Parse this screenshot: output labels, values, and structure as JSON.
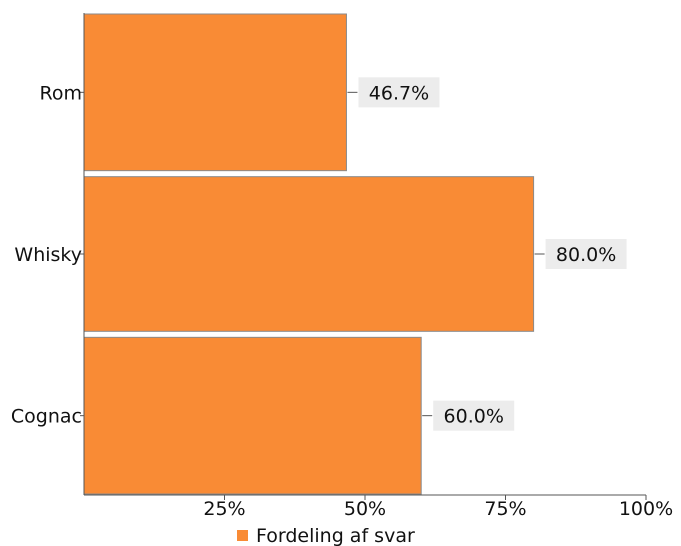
{
  "chart_data": {
    "type": "bar",
    "orientation": "horizontal",
    "categories": [
      "Rom",
      "Whisky",
      "Cognac"
    ],
    "series": [
      {
        "name": "Fordeling af svar",
        "values": [
          46.7,
          80.0,
          60.0
        ],
        "color": "#f98b35"
      }
    ],
    "data_labels": [
      "46.7%",
      "80.0%",
      "60.0%"
    ],
    "x_ticks": [
      25,
      50,
      75,
      100
    ],
    "x_tick_labels": [
      "25%",
      "50%",
      "75%",
      "100%"
    ],
    "xlim": [
      0,
      100
    ],
    "grid": false,
    "legend_position": "bottom-center"
  }
}
